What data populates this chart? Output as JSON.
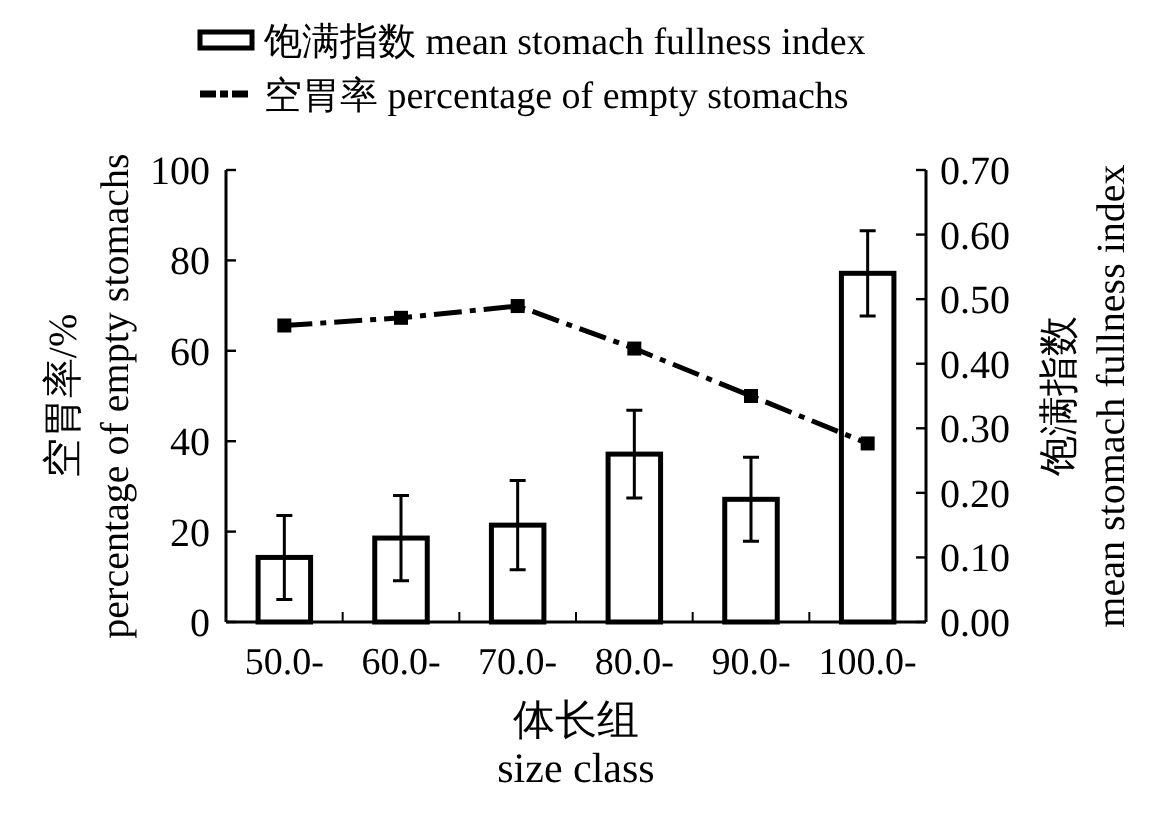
{
  "chart_data": {
    "type": "bar",
    "categories": [
      "50.0-",
      "60.0-",
      "70.0-",
      "80.0-",
      "90.0-",
      "100.0-"
    ],
    "xlabel": "体长组\nsize class",
    "ylabel": "空胃率/%\npercentage of empty stomachs",
    "y2label": "饱满指数\nmean stomach fullness index",
    "series": [
      {
        "name": "饱满指数 mean stomach fullness index",
        "axis": "y2",
        "color": "#ffffff",
        "values": [
          0.1,
          0.13,
          0.15,
          0.26,
          0.19,
          0.54
        ],
        "errors": [
          0.065,
          0.066,
          0.069,
          0.068,
          0.065,
          0.066
        ]
      },
      {
        "name": "空胃率 percentage of empty stomachs",
        "type": "line",
        "color": "#000000",
        "values": [
          65.6,
          67.3,
          69.9,
          60.5,
          50.0,
          39.5
        ]
      }
    ],
    "marker": "square",
    "line_style": "dashed",
    "legend": "top",
    "grid": false,
    "ylim": [
      0,
      100
    ],
    "yticks": [
      0,
      20,
      40,
      60,
      80,
      100
    ],
    "y2lim": [
      0,
      0.7
    ],
    "y2ticks": [
      {
        "value": 0,
        "label": "0.00"
      },
      {
        "value": 0.1,
        "label": "0.10"
      },
      {
        "value": 0.2,
        "label": "0.20"
      },
      {
        "value": 0.3,
        "label": "0.30"
      },
      {
        "value": 0.4,
        "label": "0.40"
      },
      {
        "value": 0.5,
        "label": "0.50"
      },
      {
        "value": 0.6,
        "label": "0.60"
      },
      {
        "value": 0.7,
        "label": "0.70"
      }
    ]
  }
}
